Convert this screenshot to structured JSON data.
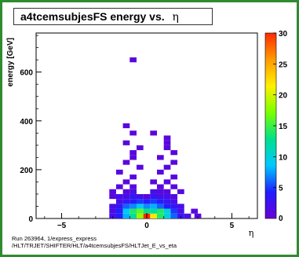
{
  "title": "a4tcemsubjesFS energy vs.",
  "title_symbol": "η",
  "footer": {
    "line1": "Run 263964, 1/express_express",
    "line2": "/HLT/TRJET/SHIFTER/HLT/a4tcemsubjesFS/HLTJet_E_vs_eta"
  },
  "chart_data": {
    "type": "heatmap",
    "title": "a4tcemsubjesFS energy vs. η",
    "xlabel": "η",
    "ylabel": "energy [GeV]",
    "xlim": [
      -6.5,
      6.5
    ],
    "ylim": [
      0,
      760
    ],
    "x_ticks": [
      -5,
      0,
      5
    ],
    "y_ticks": [
      200,
      400,
      600
    ],
    "z_range": [
      0,
      30
    ],
    "z_ticks": [
      5,
      10,
      15,
      20,
      25,
      30
    ],
    "colormap": [
      "#6a00d4",
      "#1e1eff",
      "#00c8ff",
      "#00e08a",
      "#7aff00",
      "#fff000",
      "#ff9a00",
      "#ff2a00"
    ],
    "bins": [
      {
        "x": -2.0,
        "y": 10,
        "z": 2
      },
      {
        "x": -1.6,
        "y": 10,
        "z": 4
      },
      {
        "x": -1.2,
        "y": 10,
        "z": 8
      },
      {
        "x": -0.8,
        "y": 10,
        "z": 12
      },
      {
        "x": -0.4,
        "y": 10,
        "z": 18
      },
      {
        "x": 0.0,
        "y": 10,
        "z": 30
      },
      {
        "x": 0.4,
        "y": 10,
        "z": 22
      },
      {
        "x": 0.8,
        "y": 10,
        "z": 14
      },
      {
        "x": 1.2,
        "y": 10,
        "z": 10
      },
      {
        "x": 1.6,
        "y": 10,
        "z": 6
      },
      {
        "x": 2.0,
        "y": 10,
        "z": 3
      },
      {
        "x": 2.4,
        "y": 10,
        "z": 2
      },
      {
        "x": 3.0,
        "y": 10,
        "z": 1
      },
      {
        "x": -2.0,
        "y": 30,
        "z": 2
      },
      {
        "x": -1.6,
        "y": 30,
        "z": 4
      },
      {
        "x": -1.2,
        "y": 30,
        "z": 9
      },
      {
        "x": -0.8,
        "y": 30,
        "z": 14
      },
      {
        "x": -0.4,
        "y": 30,
        "z": 16
      },
      {
        "x": 0.0,
        "y": 30,
        "z": 13
      },
      {
        "x": 0.4,
        "y": 30,
        "z": 12
      },
      {
        "x": 0.8,
        "y": 30,
        "z": 14
      },
      {
        "x": 1.2,
        "y": 30,
        "z": 10
      },
      {
        "x": 1.6,
        "y": 30,
        "z": 5
      },
      {
        "x": 2.0,
        "y": 30,
        "z": 2
      },
      {
        "x": 2.8,
        "y": 30,
        "z": 1
      },
      {
        "x": -2.0,
        "y": 50,
        "z": 2
      },
      {
        "x": -1.6,
        "y": 50,
        "z": 3
      },
      {
        "x": -1.2,
        "y": 50,
        "z": 6
      },
      {
        "x": -0.8,
        "y": 50,
        "z": 7
      },
      {
        "x": -0.4,
        "y": 50,
        "z": 9
      },
      {
        "x": 0.0,
        "y": 50,
        "z": 7
      },
      {
        "x": 0.4,
        "y": 50,
        "z": 8
      },
      {
        "x": 0.8,
        "y": 50,
        "z": 6
      },
      {
        "x": 1.2,
        "y": 50,
        "z": 4
      },
      {
        "x": 1.6,
        "y": 50,
        "z": 3
      },
      {
        "x": 2.0,
        "y": 50,
        "z": 2
      },
      {
        "x": -1.6,
        "y": 70,
        "z": 2
      },
      {
        "x": -1.2,
        "y": 70,
        "z": 3
      },
      {
        "x": -0.8,
        "y": 70,
        "z": 4
      },
      {
        "x": -0.4,
        "y": 70,
        "z": 5
      },
      {
        "x": 0.0,
        "y": 70,
        "z": 4
      },
      {
        "x": 0.4,
        "y": 70,
        "z": 5
      },
      {
        "x": 0.8,
        "y": 70,
        "z": 4
      },
      {
        "x": 1.2,
        "y": 70,
        "z": 3
      },
      {
        "x": 1.6,
        "y": 70,
        "z": 2
      },
      {
        "x": -2.0,
        "y": 90,
        "z": 1
      },
      {
        "x": -1.6,
        "y": 90,
        "z": 2
      },
      {
        "x": -1.2,
        "y": 90,
        "z": 2
      },
      {
        "x": -0.8,
        "y": 90,
        "z": 3
      },
      {
        "x": -0.4,
        "y": 90,
        "z": 2
      },
      {
        "x": 0.0,
        "y": 90,
        "z": 1
      },
      {
        "x": 0.4,
        "y": 90,
        "z": 3
      },
      {
        "x": 0.8,
        "y": 90,
        "z": 2
      },
      {
        "x": 1.2,
        "y": 90,
        "z": 2
      },
      {
        "x": 1.6,
        "y": 90,
        "z": 1
      },
      {
        "x": -2.0,
        "y": 110,
        "z": 1
      },
      {
        "x": -1.2,
        "y": 110,
        "z": 1
      },
      {
        "x": -0.8,
        "y": 110,
        "z": 2
      },
      {
        "x": 0.4,
        "y": 110,
        "z": 2
      },
      {
        "x": 0.8,
        "y": 110,
        "z": 1
      },
      {
        "x": 1.2,
        "y": 110,
        "z": 1
      },
      {
        "x": 2.0,
        "y": 110,
        "z": 1
      },
      {
        "x": -1.6,
        "y": 130,
        "z": 1
      },
      {
        "x": -0.8,
        "y": 130,
        "z": 1
      },
      {
        "x": 0.8,
        "y": 130,
        "z": 1
      },
      {
        "x": 1.6,
        "y": 130,
        "z": 1
      },
      {
        "x": -1.2,
        "y": 150,
        "z": 1
      },
      {
        "x": 0.4,
        "y": 150,
        "z": 1
      },
      {
        "x": 1.2,
        "y": 150,
        "z": 1
      },
      {
        "x": -0.8,
        "y": 170,
        "z": 1
      },
      {
        "x": 1.6,
        "y": 170,
        "z": 1
      },
      {
        "x": -1.6,
        "y": 190,
        "z": 1
      },
      {
        "x": 0.8,
        "y": 190,
        "z": 1
      },
      {
        "x": -0.4,
        "y": 210,
        "z": 1
      },
      {
        "x": 1.2,
        "y": 210,
        "z": 1
      },
      {
        "x": -1.2,
        "y": 230,
        "z": 1
      },
      {
        "x": 1.6,
        "y": 230,
        "z": 1
      },
      {
        "x": -0.8,
        "y": 250,
        "z": 1
      },
      {
        "x": 0.8,
        "y": 250,
        "z": 1
      },
      {
        "x": -0.8,
        "y": 270,
        "z": 1
      },
      {
        "x": 1.6,
        "y": 270,
        "z": 1
      },
      {
        "x": -0.4,
        "y": 290,
        "z": 1
      },
      {
        "x": 1.2,
        "y": 290,
        "z": 1
      },
      {
        "x": -1.2,
        "y": 310,
        "z": 1
      },
      {
        "x": 1.2,
        "y": 310,
        "z": 1
      },
      {
        "x": 1.2,
        "y": 330,
        "z": 1
      },
      {
        "x": -0.8,
        "y": 350,
        "z": 1
      },
      {
        "x": 0.4,
        "y": 350,
        "z": 1
      },
      {
        "x": -1.2,
        "y": 380,
        "z": 1
      },
      {
        "x": -0.8,
        "y": 650,
        "z": 1
      }
    ]
  }
}
